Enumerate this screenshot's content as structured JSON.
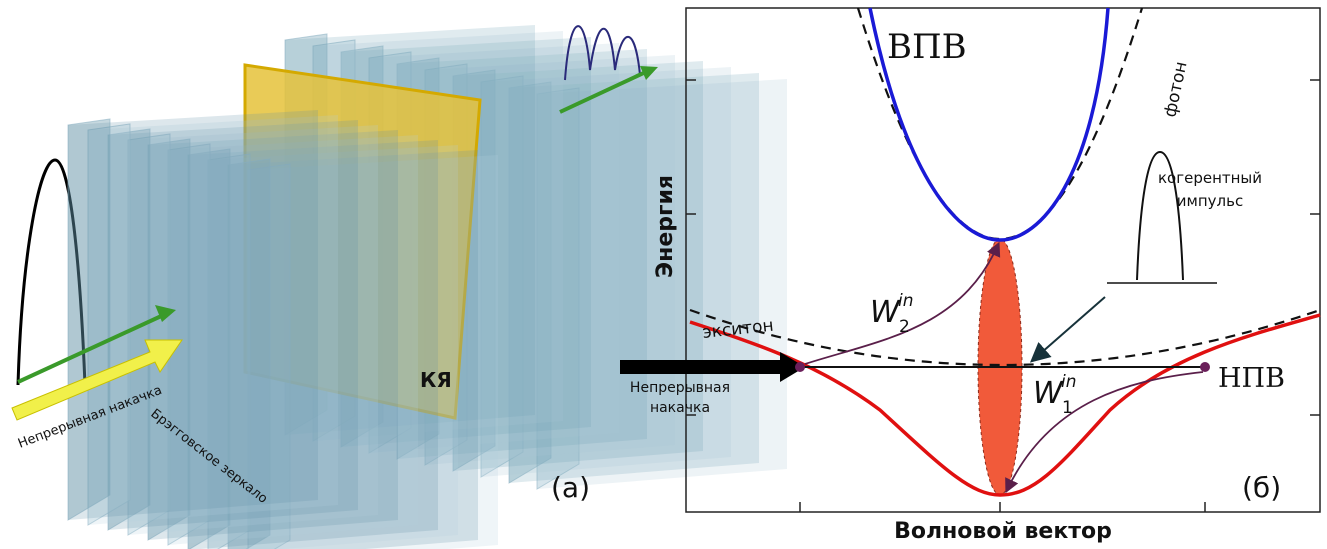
{
  "panel_a": {
    "pump_label": "Непрерывная накачка",
    "mirror_label": "Брэгговское зеркало",
    "qw_label": "КЯ",
    "panel_label": "(а)"
  },
  "panel_b": {
    "upper_branch": "ВПВ",
    "lower_branch": "НПВ",
    "photon": "фотон",
    "exciton": "экситон",
    "y_axis": "Энергия",
    "x_axis": "Волновой вектор",
    "pulse_label": [
      "когерентный",
      "импульс"
    ],
    "pump_label": [
      "Непрерывная",
      "накачка"
    ],
    "w2": {
      "symbol": "W",
      "subscript": "2",
      "superscript": "in"
    },
    "w1": {
      "symbol": "W",
      "subscript": "1",
      "superscript": "in"
    },
    "panel_label": "(б)"
  }
}
